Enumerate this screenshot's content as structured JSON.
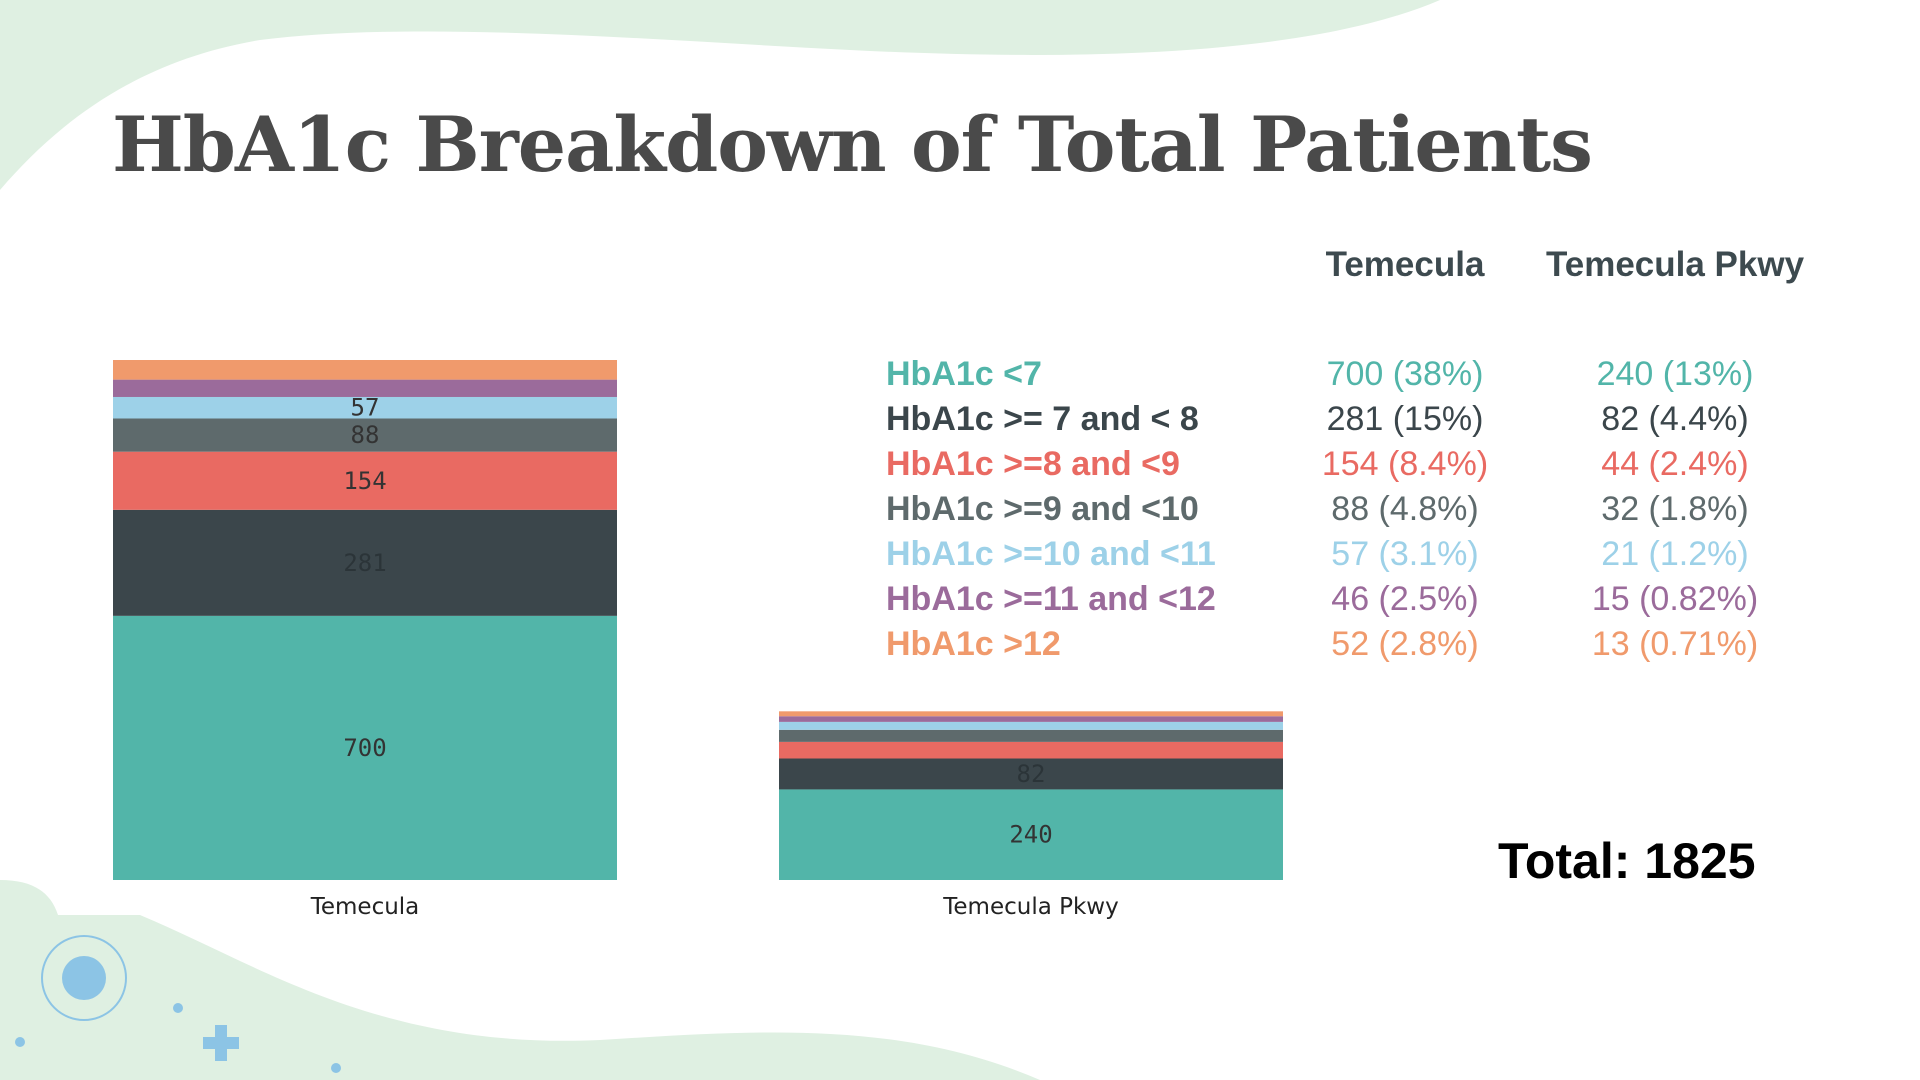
{
  "title": "HbA1c Breakdown of Total Patients",
  "table": {
    "columns": [
      "Temecula",
      "Temecula Pkwy"
    ],
    "rows": [
      {
        "label": "HbA1c <7",
        "temecula": "700 (38%)",
        "pkwy": "240 (13%)",
        "color": "#52b5a9"
      },
      {
        "label": "HbA1c >= 7 and < 8",
        "temecula": "281 (15%)",
        "pkwy": "82 (4.4%)",
        "color": "#3b464b"
      },
      {
        "label": "HbA1c >=8 and <9",
        "temecula": "154 (8.4%)",
        "pkwy": "44 (2.4%)",
        "color": "#e96a62"
      },
      {
        "label": "HbA1c >=9 and <10",
        "temecula": "88 (4.8%)",
        "pkwy": "32 (1.8%)",
        "color": "#5e6a6c"
      },
      {
        "label": "HbA1c >=10 and <11",
        "temecula": "57 (3.1%)",
        "pkwy": "21 (1.2%)",
        "color": "#9dd1e8"
      },
      {
        "label": "HbA1c >=11 and <12",
        "temecula": "46 (2.5%)",
        "pkwy": "15 (0.82%)",
        "color": "#9b6b9b"
      },
      {
        "label": "HbA1c >12",
        "temecula": "52 (2.8%)",
        "pkwy": "13 (0.71%)",
        "color": "#f09a6c"
      }
    ]
  },
  "total": "Total: 1825",
  "chart_data": {
    "type": "bar",
    "stacked": true,
    "categories": [
      "Temecula",
      "Temecula Pkwy"
    ],
    "series": [
      {
        "name": "HbA1c <7",
        "values": [
          700,
          240
        ],
        "color": "#52b5a9",
        "text_color": "#333333"
      },
      {
        "name": "HbA1c >= 7 and < 8",
        "values": [
          281,
          82
        ],
        "color": "#3b464b",
        "text_color": "#2b3438"
      },
      {
        "name": "HbA1c >=8 and <9",
        "values": [
          154,
          44
        ],
        "color": "#e96a62",
        "text_color": "#333333"
      },
      {
        "name": "HbA1c >=9 and <10",
        "values": [
          88,
          32
        ],
        "color": "#5e6a6c",
        "text_color": "#333333"
      },
      {
        "name": "HbA1c >=10 and <11",
        "values": [
          57,
          21
        ],
        "color": "#9dd1e8",
        "text_color": "#333333"
      },
      {
        "name": "HbA1c >=11 and <12",
        "values": [
          46,
          15
        ],
        "color": "#9b6b9b",
        "text_color": "#333333"
      },
      {
        "name": "HbA1c >12",
        "values": [
          52,
          13
        ],
        "color": "#f09a6c",
        "text_color": "#333333"
      }
    ],
    "data_labels": [
      [
        "700",
        "281",
        "154",
        "88",
        "57",
        null,
        null
      ],
      [
        "240",
        "82",
        null,
        null,
        null,
        null,
        null
      ]
    ],
    "title": "",
    "xlabel": "",
    "ylabel": "",
    "ylim": [
      0,
      1378
    ],
    "legend": "none"
  }
}
